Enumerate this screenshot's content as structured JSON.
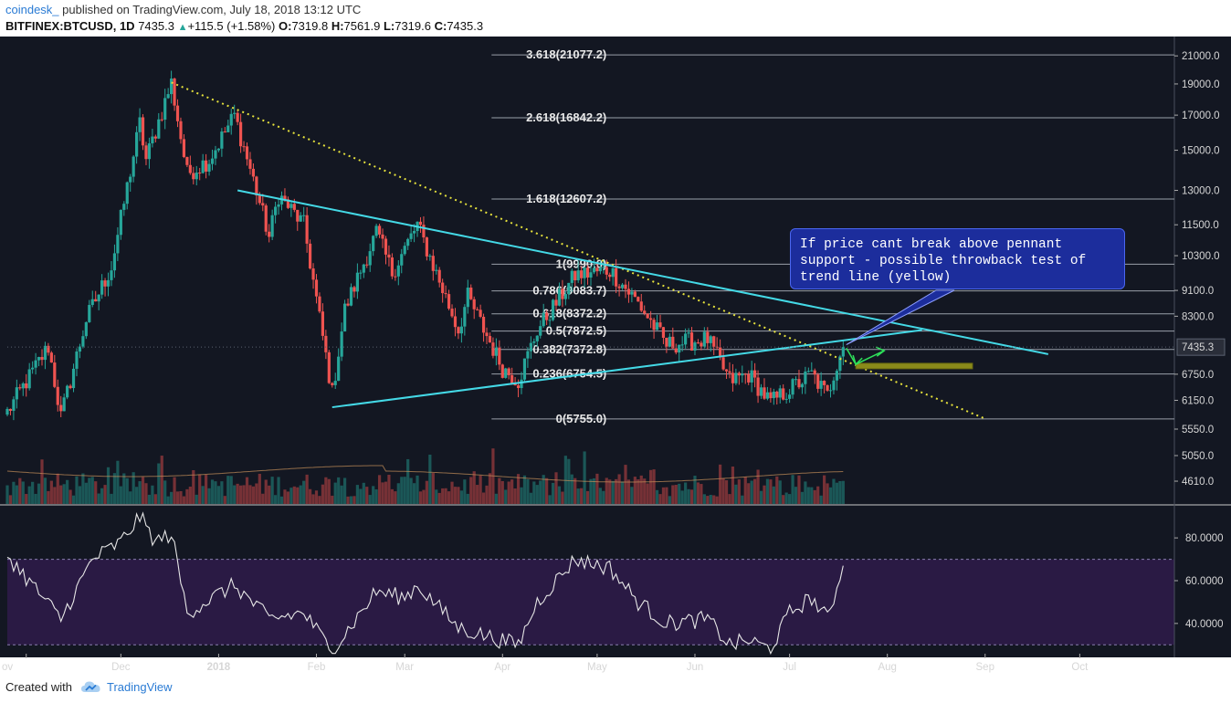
{
  "header": {
    "author": "coindesk_",
    "published_text": "published on TradingView.com, July 18, 2018 13:12 UTC",
    "symbol": "BITFINEX:BTCUSD, 1D",
    "last": "7435.3",
    "change": "+115.5 (+1.58%)",
    "open_label": "O:",
    "open": "7319.8",
    "high_label": "H:",
    "high": "7561.9",
    "low_label": "L:",
    "low": "7319.6",
    "close_label": "C:",
    "close": "7435.3"
  },
  "annotation": {
    "text": "If price cant break above pennant\nsupport - possible throwback test of\ntrend line (yellow)"
  },
  "footer": {
    "created_with": "Created with",
    "brand": "TradingView"
  },
  "colors": {
    "background": "#131722",
    "rsi_band": "#2a1a44",
    "up": "#26a69a",
    "down": "#ef5350",
    "trendline_yellow": "#e6e23c",
    "pennant": "#44d9e6",
    "fib": "#9aa0aa",
    "rsi_line": "#e6e6e6",
    "price_tag": "#2a2e39"
  },
  "chart_data": [
    {
      "type": "candlestick",
      "title": "BITFINEX:BTCUSD, 1D",
      "x_axis": {
        "type": "date",
        "range": [
          "2017-10-26",
          "2018-10-31"
        ],
        "tick_labels": [
          "ov",
          "Dec",
          "2018",
          "Feb",
          "Mar",
          "Apr",
          "May",
          "Jun",
          "Jul",
          "Aug",
          "Sep",
          "Oct"
        ],
        "tick_dates": [
          "2017-11-01",
          "2017-12-01",
          "2018-01-01",
          "2018-02-01",
          "2018-03-01",
          "2018-04-01",
          "2018-05-01",
          "2018-06-01",
          "2018-07-01",
          "2018-08-01",
          "2018-09-01",
          "2018-10-01"
        ]
      },
      "y_axis": {
        "scale": "log",
        "range": [
          4250,
          22500
        ],
        "tick_labels": [
          "21000.0",
          "19000.0",
          "17000.0",
          "15000.0",
          "13000.0",
          "11500.0",
          "10300.0",
          "9100.0",
          "8300.0",
          "7435.3",
          "6750.0",
          "6150.0",
          "5550.0",
          "5050.0",
          "4610.0"
        ],
        "tick_values": [
          21000,
          19000,
          17000,
          15000,
          13000,
          11500,
          10300,
          9100,
          8300,
          7435.3,
          6750,
          6150,
          5550,
          5050,
          4610
        ]
      },
      "last_price": 7435.3,
      "fibonacci_levels": [
        {
          "label": "3.618(21077.2)",
          "value": 21077.2
        },
        {
          "label": "2.618(16842.2)",
          "value": 16842.2
        },
        {
          "label": "1.618(12607.2)",
          "value": 12607.2
        },
        {
          "label": "1(9990.0)",
          "value": 9990.0
        },
        {
          "label": "0.786(9083.7)",
          "value": 9083.7
        },
        {
          "label": "0.618(8372.2)",
          "value": 8372.2
        },
        {
          "label": "0.5(7872.5)",
          "value": 7872.5
        },
        {
          "label": "0.382(7372.8)",
          "value": 7372.8
        },
        {
          "label": "0.236(6754.5)",
          "value": 6754.5
        },
        {
          "label": "0(5755.0)",
          "value": 5755.0
        }
      ],
      "trendlines": [
        {
          "name": "yellow-trend",
          "style": "dotted",
          "from": {
            "date": "2017-12-17",
            "price": 19100
          },
          "to": {
            "date": "2018-09-01",
            "price": 5760
          }
        },
        {
          "name": "pennant-upper",
          "style": "solid",
          "from": {
            "date": "2018-01-07",
            "price": 13000
          },
          "to": {
            "date": "2018-09-21",
            "price": 7250
          }
        },
        {
          "name": "pennant-lower",
          "style": "solid",
          "from": {
            "date": "2018-02-06",
            "price": 6000
          },
          "to": {
            "date": "2018-08-12",
            "price": 7900
          }
        }
      ],
      "marks": [
        {
          "name": "support-zone",
          "from_date": "2018-07-22",
          "to_date": "2018-08-28",
          "price": 6950
        },
        {
          "name": "throwback-arrow",
          "points": [
            {
              "date": "2018-07-19",
              "price": 7410
            },
            {
              "date": "2018-07-22",
              "price": 6990
            },
            {
              "date": "2018-07-31",
              "price": 7340
            }
          ]
        }
      ],
      "anchor_points": [
        {
          "date": "2017-10-26",
          "close": 5900
        },
        {
          "date": "2017-11-08",
          "close": 7450
        },
        {
          "date": "2017-11-12",
          "close": 5800
        },
        {
          "date": "2017-11-20",
          "close": 8200
        },
        {
          "date": "2017-11-28",
          "close": 9900
        },
        {
          "date": "2017-12-07",
          "close": 16500
        },
        {
          "date": "2017-12-09",
          "close": 14500
        },
        {
          "date": "2017-12-17",
          "close": 19100
        },
        {
          "date": "2017-12-22",
          "close": 13800
        },
        {
          "date": "2017-12-29",
          "close": 14500
        },
        {
          "date": "2018-01-06",
          "close": 17000
        },
        {
          "date": "2018-01-12",
          "close": 13500
        },
        {
          "date": "2018-01-17",
          "close": 11000
        },
        {
          "date": "2018-01-20",
          "close": 12800
        },
        {
          "date": "2018-01-28",
          "close": 11500
        },
        {
          "date": "2018-02-06",
          "close": 6300
        },
        {
          "date": "2018-02-10",
          "close": 8500
        },
        {
          "date": "2018-02-20",
          "close": 11200
        },
        {
          "date": "2018-02-25",
          "close": 9700
        },
        {
          "date": "2018-03-05",
          "close": 11500
        },
        {
          "date": "2018-03-18",
          "close": 7900
        },
        {
          "date": "2018-03-21",
          "close": 8900
        },
        {
          "date": "2018-04-01",
          "close": 6900
        },
        {
          "date": "2018-04-06",
          "close": 6600
        },
        {
          "date": "2018-04-12",
          "close": 7900
        },
        {
          "date": "2018-04-24",
          "close": 9600
        },
        {
          "date": "2018-05-05",
          "close": 9800
        },
        {
          "date": "2018-05-14",
          "close": 8700
        },
        {
          "date": "2018-05-23",
          "close": 7500
        },
        {
          "date": "2018-06-05",
          "close": 7650
        },
        {
          "date": "2018-06-12",
          "close": 6600
        },
        {
          "date": "2018-06-18",
          "close": 6750
        },
        {
          "date": "2018-06-25",
          "close": 6100
        },
        {
          "date": "2018-07-01",
          "close": 6400
        },
        {
          "date": "2018-07-08",
          "close": 6750
        },
        {
          "date": "2018-07-13",
          "close": 6250
        },
        {
          "date": "2018-07-17",
          "close": 7320
        },
        {
          "date": "2018-07-18",
          "close": 7435.3
        }
      ]
    },
    {
      "type": "bar",
      "title": "Volume",
      "series": [
        {
          "values": "derived daily volume"
        }
      ]
    },
    {
      "type": "line",
      "title": "RSI",
      "y_axis": {
        "range": [
          25,
          95
        ],
        "tick_labels": [
          "80.0000",
          "60.0000",
          "40.0000"
        ],
        "tick_values": [
          80,
          60,
          40
        ],
        "band": [
          30,
          70
        ]
      },
      "anchor_points": [
        {
          "date": "2017-10-26",
          "value": 72
        },
        {
          "date": "2017-11-12",
          "value": 42
        },
        {
          "date": "2017-11-22",
          "value": 70
        },
        {
          "date": "2017-12-01",
          "value": 78
        },
        {
          "date": "2017-12-07",
          "value": 90
        },
        {
          "date": "2017-12-12",
          "value": 78
        },
        {
          "date": "2017-12-17",
          "value": 82
        },
        {
          "date": "2017-12-22",
          "value": 45
        },
        {
          "date": "2018-01-06",
          "value": 58
        },
        {
          "date": "2018-01-17",
          "value": 42
        },
        {
          "date": "2018-01-28",
          "value": 45
        },
        {
          "date": "2018-02-06",
          "value": 27
        },
        {
          "date": "2018-02-20",
          "value": 55
        },
        {
          "date": "2018-03-01",
          "value": 52
        },
        {
          "date": "2018-03-05",
          "value": 58
        },
        {
          "date": "2018-03-18",
          "value": 38
        },
        {
          "date": "2018-04-01",
          "value": 32
        },
        {
          "date": "2018-04-06",
          "value": 30
        },
        {
          "date": "2018-04-12",
          "value": 50
        },
        {
          "date": "2018-04-24",
          "value": 70
        },
        {
          "date": "2018-05-05",
          "value": 66
        },
        {
          "date": "2018-05-14",
          "value": 50
        },
        {
          "date": "2018-05-23",
          "value": 40
        },
        {
          "date": "2018-06-05",
          "value": 42
        },
        {
          "date": "2018-06-12",
          "value": 30
        },
        {
          "date": "2018-06-18",
          "value": 32
        },
        {
          "date": "2018-06-25",
          "value": 28
        },
        {
          "date": "2018-07-01",
          "value": 45
        },
        {
          "date": "2018-07-08",
          "value": 52
        },
        {
          "date": "2018-07-13",
          "value": 42
        },
        {
          "date": "2018-07-18",
          "value": 67
        }
      ]
    }
  ]
}
